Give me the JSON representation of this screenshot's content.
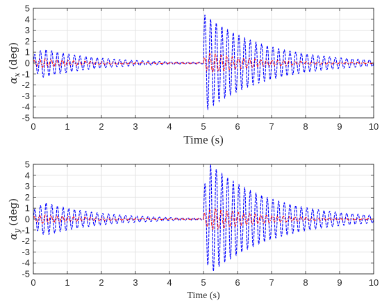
{
  "chart_data": [
    {
      "type": "line",
      "ylabel": "αx (deg)",
      "ylabel_symbol": "α",
      "ylabel_sub": "x",
      "ylabel_unit": "(deg)",
      "xlabel": "Time (s)",
      "xlim": [
        0,
        10
      ],
      "ylim": [
        -5,
        5
      ],
      "xticks": [
        "0",
        "1",
        "2",
        "3",
        "4",
        "5",
        "6",
        "7",
        "8",
        "9",
        "10"
      ],
      "yticks": [
        "-5",
        "-4",
        "-3",
        "-2",
        "-1",
        "0",
        "1",
        "2",
        "3",
        "4",
        "5"
      ],
      "grid": true,
      "series": [
        {
          "color": "#0000ff",
          "style": "dashed",
          "frequency_hz": 6.0,
          "segments": [
            {
              "t_start": 0,
              "t_end": 5,
              "peak_amplitude": 1.3,
              "peak_time": 0.3,
              "decay_time_constant": 1.6
            },
            {
              "t_start": 5,
              "t_end": 10,
              "peak_amplitude": 4.5,
              "peak_time": 5.0,
              "decay_time_constant": 1.8
            }
          ]
        },
        {
          "color": "#ff0000",
          "style": "dash-dot",
          "frequency_hz": 6.0,
          "segments": [
            {
              "t_start": 0,
              "t_end": 5,
              "peak_amplitude": 0.4,
              "peak_time": 0.3,
              "decay_time_constant": 1.4
            },
            {
              "t_start": 5,
              "t_end": 10,
              "peak_amplitude": 0.9,
              "peak_time": 5.2,
              "decay_time_constant": 1.5
            }
          ]
        }
      ]
    },
    {
      "type": "line",
      "ylabel": "αy (deg)",
      "ylabel_symbol": "α",
      "ylabel_sub": "y",
      "ylabel_unit": "(deg)",
      "xlabel": "Time (s)",
      "xlim": [
        0,
        10
      ],
      "ylim": [
        -5,
        5
      ],
      "xticks": [
        "0",
        "1",
        "2",
        "3",
        "4",
        "5",
        "6",
        "7",
        "8",
        "9",
        "10"
      ],
      "yticks": [
        "-5",
        "-4",
        "-3",
        "-2",
        "-1",
        "0",
        "1",
        "2",
        "3",
        "4",
        "5"
      ],
      "grid": true,
      "series": [
        {
          "color": "#0000ff",
          "style": "dashed",
          "frequency_hz": 6.0,
          "segments": [
            {
              "t_start": 0,
              "t_end": 5,
              "peak_amplitude": 1.5,
              "peak_time": 0.35,
              "decay_time_constant": 1.6
            },
            {
              "t_start": 5,
              "t_end": 10,
              "peak_amplitude": 5.0,
              "peak_time": 5.2,
              "decay_time_constant": 1.8
            }
          ]
        },
        {
          "color": "#ff0000",
          "style": "dash-dot",
          "frequency_hz": 6.0,
          "segments": [
            {
              "t_start": 0,
              "t_end": 5,
              "peak_amplitude": 0.4,
              "peak_time": 0.3,
              "decay_time_constant": 1.4
            },
            {
              "t_start": 5,
              "t_end": 10,
              "peak_amplitude": 1.0,
              "peak_time": 5.3,
              "decay_time_constant": 1.5
            }
          ]
        }
      ]
    }
  ]
}
